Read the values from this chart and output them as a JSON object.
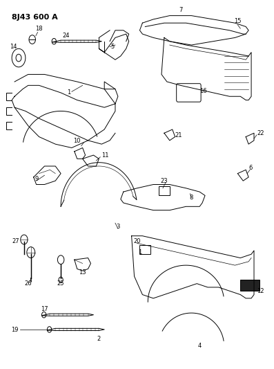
{
  "title": "8J43 600 A",
  "bg_color": "#ffffff",
  "line_color": "#000000",
  "fig_width": 3.97,
  "fig_height": 5.33,
  "dpi": 100
}
